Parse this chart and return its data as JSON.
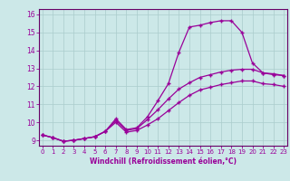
{
  "xlabel": "Windchill (Refroidissement éolien,°C)",
  "bg_color": "#cce8e8",
  "grid_color": "#aacccc",
  "line_color": "#990099",
  "spine_color": "#660066",
  "x_ticks": [
    0,
    1,
    2,
    3,
    4,
    5,
    6,
    7,
    8,
    9,
    10,
    11,
    12,
    13,
    14,
    15,
    16,
    17,
    18,
    19,
    20,
    21,
    22,
    23
  ],
  "y_ticks": [
    9,
    10,
    11,
    12,
    13,
    14,
    15,
    16
  ],
  "xlim": [
    -0.3,
    23.3
  ],
  "ylim": [
    8.7,
    16.3
  ],
  "line1_x": [
    0,
    1,
    2,
    3,
    4,
    5,
    6,
    7,
    8,
    9,
    10,
    11,
    12,
    13,
    14,
    15,
    16,
    17,
    18,
    19,
    20,
    21,
    22,
    23
  ],
  "line1_y": [
    9.3,
    9.15,
    8.95,
    9.0,
    9.1,
    9.2,
    9.5,
    10.2,
    9.6,
    9.7,
    10.3,
    11.2,
    12.15,
    13.9,
    15.3,
    15.4,
    15.55,
    15.65,
    15.65,
    15.0,
    13.3,
    12.75,
    12.65,
    12.6
  ],
  "line2_x": [
    0,
    1,
    2,
    3,
    4,
    5,
    6,
    7,
    8,
    9,
    10,
    11,
    12,
    13,
    14,
    15,
    16,
    17,
    18,
    19,
    20,
    21,
    22,
    23
  ],
  "line2_y": [
    9.3,
    9.15,
    8.95,
    9.0,
    9.1,
    9.2,
    9.5,
    10.1,
    9.55,
    9.65,
    10.15,
    10.7,
    11.3,
    11.85,
    12.2,
    12.5,
    12.65,
    12.8,
    12.9,
    12.95,
    12.95,
    12.75,
    12.7,
    12.6
  ],
  "line3_x": [
    0,
    1,
    2,
    3,
    4,
    5,
    6,
    7,
    8,
    9,
    10,
    11,
    12,
    13,
    14,
    15,
    16,
    17,
    18,
    19,
    20,
    21,
    22,
    23
  ],
  "line3_y": [
    9.3,
    9.15,
    8.95,
    9.0,
    9.1,
    9.2,
    9.5,
    10.0,
    9.45,
    9.55,
    9.85,
    10.2,
    10.65,
    11.1,
    11.5,
    11.8,
    11.95,
    12.1,
    12.2,
    12.3,
    12.3,
    12.15,
    12.1,
    12.0
  ]
}
